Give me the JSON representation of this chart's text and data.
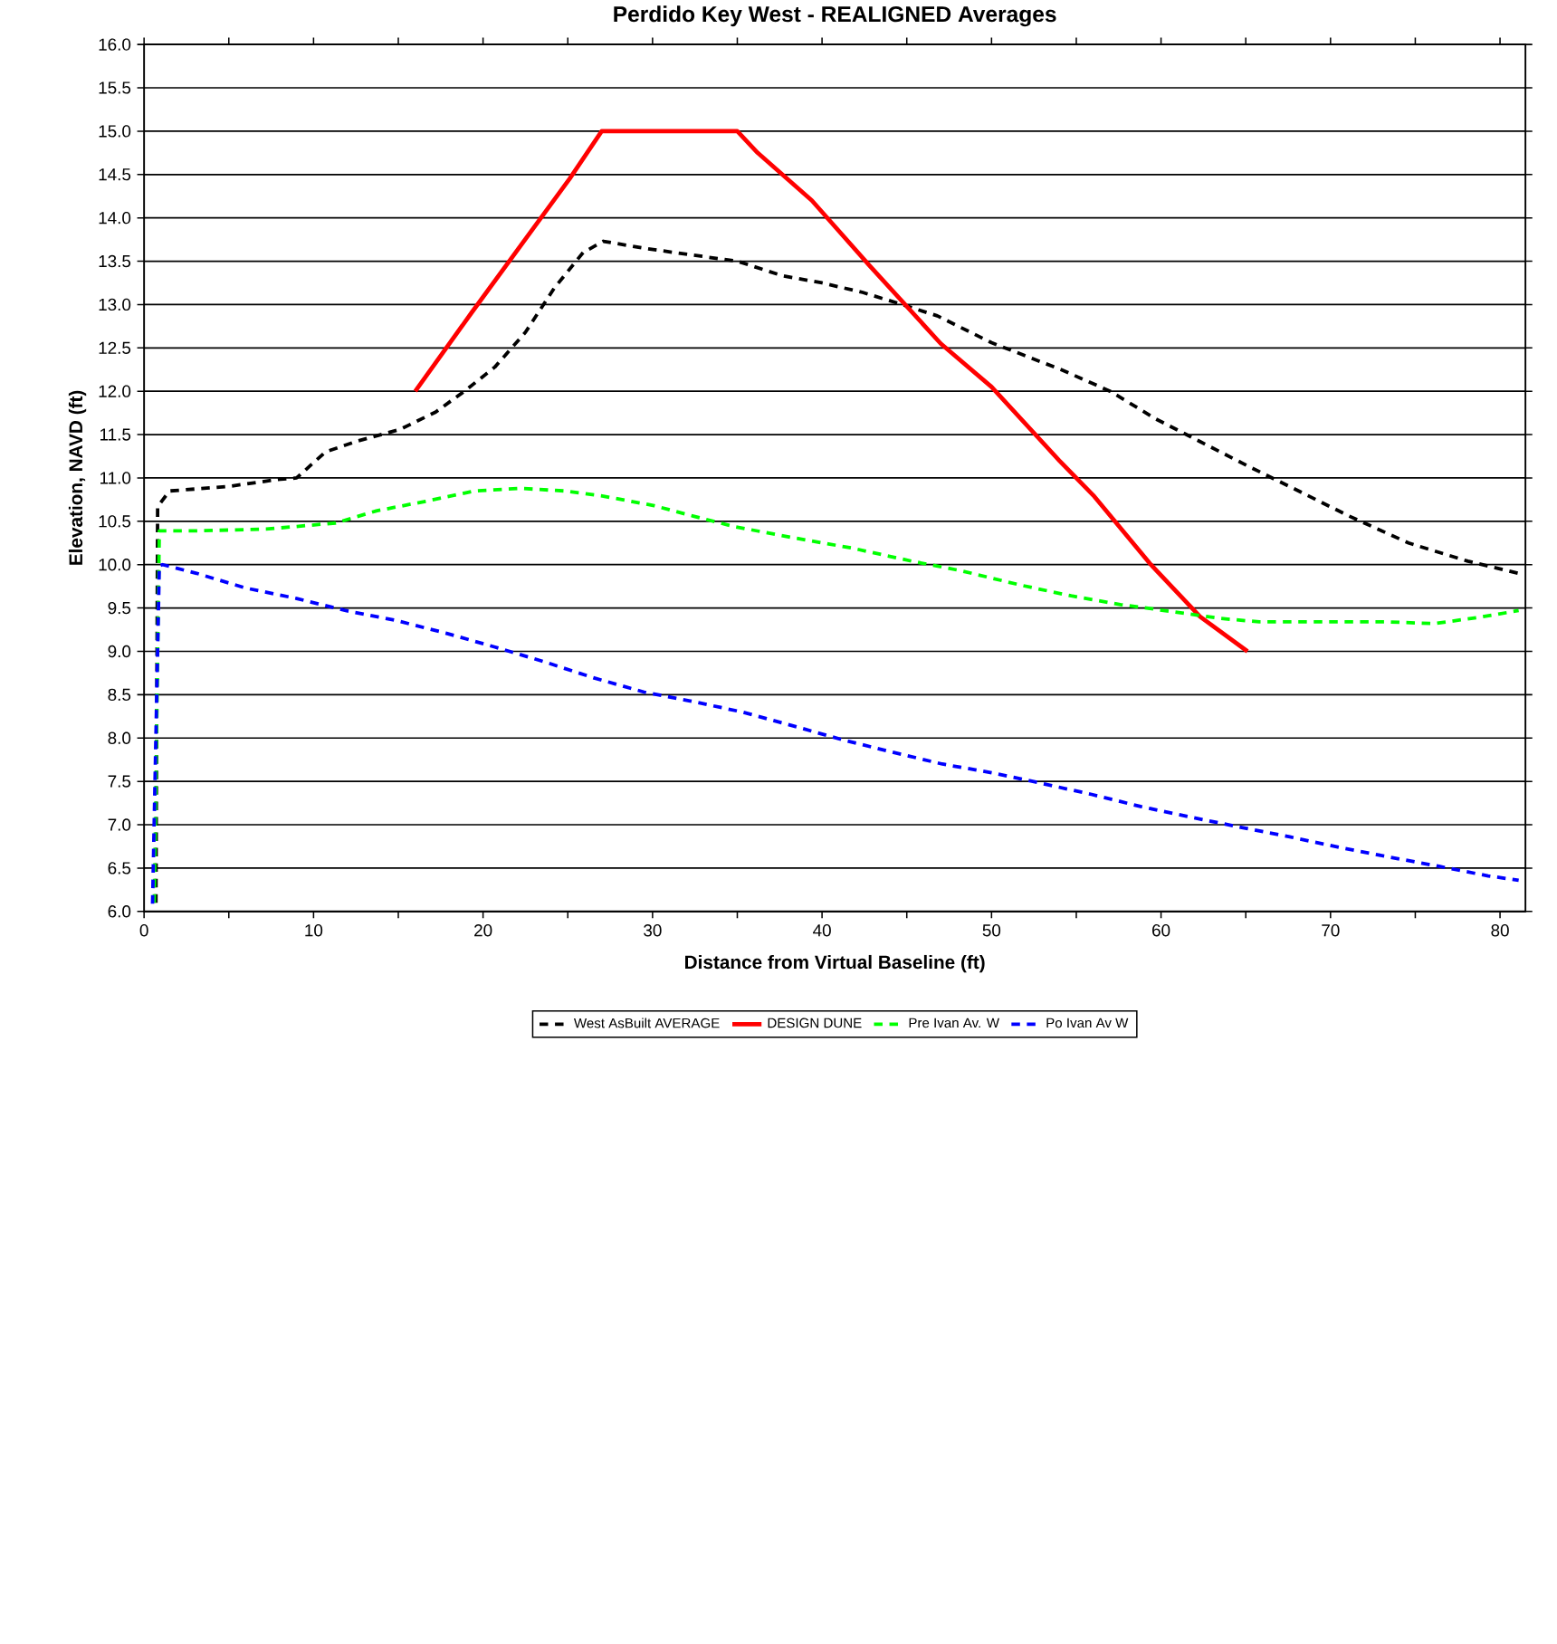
{
  "chart_data": {
    "type": "line",
    "title": "Perdido Key West - REALIGNED Averages",
    "xlabel": "Distance from Virtual Baseline (ft)",
    "ylabel": "Elevation, NAVD (ft)",
    "xlim": [
      0,
      81.5
    ],
    "xticks": [
      0,
      {
        "value": 5,
        "label": null
      },
      10,
      {
        "value": 15,
        "label": null
      },
      20,
      {
        "value": 25,
        "label": null
      },
      30,
      {
        "value": 35,
        "label": null
      },
      40,
      {
        "value": 45,
        "label": null
      },
      50,
      {
        "value": 55,
        "label": null
      },
      60,
      {
        "value": 65,
        "label": null
      },
      70,
      {
        "value": 75,
        "label": null
      },
      80
    ],
    "ylim": [
      6,
      16
    ],
    "yticks": [
      {
        "value": 6,
        "label": "6.0"
      },
      {
        "value": 6.5,
        "label": "6.5"
      },
      {
        "value": 7,
        "label": "7.0"
      },
      {
        "value": 7.5,
        "label": "7.5"
      },
      {
        "value": 8,
        "label": "8.0"
      },
      {
        "value": 8.5,
        "label": "8.5"
      },
      {
        "value": 9,
        "label": "9.0"
      },
      {
        "value": 9.5,
        "label": "9.5"
      },
      {
        "value": 10,
        "label": "10.0"
      },
      {
        "value": 10.5,
        "label": "10.5"
      },
      {
        "value": 11,
        "label": "11.0"
      },
      {
        "value": 11.5,
        "label": "11.5"
      },
      {
        "value": 12,
        "label": "12.0"
      },
      {
        "value": 12.5,
        "label": "12.5"
      },
      {
        "value": 13,
        "label": "13.0"
      },
      {
        "value": 13.5,
        "label": "13.5"
      },
      {
        "value": 14,
        "label": "14.0"
      },
      {
        "value": 14.5,
        "label": "14.5"
      },
      {
        "value": 15,
        "label": "15.0"
      },
      {
        "value": 15.5,
        "label": "15.5"
      },
      {
        "value": 16,
        "label": "16.0"
      }
    ],
    "grid": "y",
    "legend": "bottom",
    "marker": "none",
    "series": [
      {
        "name": "West AsBuilt AVERAGE",
        "color": "#000000",
        "line_style": "dashed",
        "x": [
          0.7,
          0.8,
          1.5,
          4.9,
          7.8,
          9,
          10.7,
          12.5,
          15.1,
          17.2,
          18.9,
          20.7,
          22.5,
          24.2,
          25.9,
          27.1,
          29.5,
          32.4,
          35,
          37.7,
          40,
          42.4,
          44.4,
          46.8,
          50,
          54.1,
          57,
          59.7,
          62.3,
          65.2,
          67.6,
          71.1,
          74.6,
          78.1,
          81.1
        ],
        "values": [
          6.1,
          10.67,
          10.85,
          10.9,
          10.98,
          11.0,
          11.3,
          11.42,
          11.56,
          11.76,
          12.0,
          12.28,
          12.68,
          13.19,
          13.6,
          13.73,
          13.65,
          13.57,
          13.5,
          13.33,
          13.25,
          13.14,
          13.02,
          12.87,
          12.56,
          12.25,
          12.0,
          11.68,
          11.42,
          11.13,
          10.9,
          10.56,
          10.25,
          10.04,
          9.9
        ]
      },
      {
        "name": "DESIGN DUNE",
        "color": "#ff0000",
        "line_style": "solid",
        "x": [
          16,
          19.3,
          25.1,
          27,
          35,
          36.2,
          39.4,
          42.8,
          47,
          50,
          54,
          56,
          59.4,
          62.3,
          65.1
        ],
        "values": [
          12,
          12.9,
          14.45,
          15,
          15,
          14.75,
          14.2,
          13.45,
          12.55,
          12.05,
          11.2,
          10.8,
          10,
          9.4,
          9
        ]
      },
      {
        "name": "Pre Ivan Av. W",
        "color": "#00ff00",
        "line_style": "dashed",
        "x": [
          0.6,
          0.9,
          3.1,
          7.2,
          11.3,
          13.7,
          16.6,
          19.5,
          22.2,
          24.8,
          27.1,
          30.1,
          32.4,
          34.8,
          38.3,
          41.8,
          45.3,
          48.2,
          51.8,
          54.7,
          57.6,
          60.6,
          63.5,
          65.8,
          69.9,
          73.4,
          76.1,
          78.7,
          81.1
        ],
        "values": [
          6.1,
          10.39,
          10.39,
          10.41,
          10.48,
          10.62,
          10.73,
          10.85,
          10.88,
          10.85,
          10.79,
          10.68,
          10.56,
          10.44,
          10.31,
          10.19,
          10.04,
          9.93,
          9.76,
          9.64,
          9.54,
          9.46,
          9.38,
          9.34,
          9.34,
          9.34,
          9.32,
          9.39,
          9.47
        ]
      },
      {
        "name": "Po Ivan Av W",
        "color": "#0000ff",
        "line_style": "dashed",
        "x": [
          0.5,
          0.9,
          1.1,
          3.1,
          6.0,
          9.0,
          11.9,
          14.8,
          17.8,
          20.7,
          23.6,
          26.6,
          29.5,
          32.4,
          35.3,
          38.3,
          41.2,
          44.1,
          47.1,
          50,
          52.9,
          55.9,
          58.8,
          61.7,
          64.7,
          67.6,
          70.5,
          73.4,
          76.4,
          79.3,
          81.1
        ],
        "values": [
          6.09,
          9.99,
          10.0,
          9.9,
          9.73,
          9.61,
          9.47,
          9.36,
          9.21,
          9.05,
          8.88,
          8.69,
          8.53,
          8.42,
          8.3,
          8.14,
          7.98,
          7.84,
          7.7,
          7.6,
          7.48,
          7.35,
          7.21,
          7.09,
          6.97,
          6.86,
          6.74,
          6.63,
          6.52,
          6.41,
          6.36
        ]
      }
    ]
  }
}
